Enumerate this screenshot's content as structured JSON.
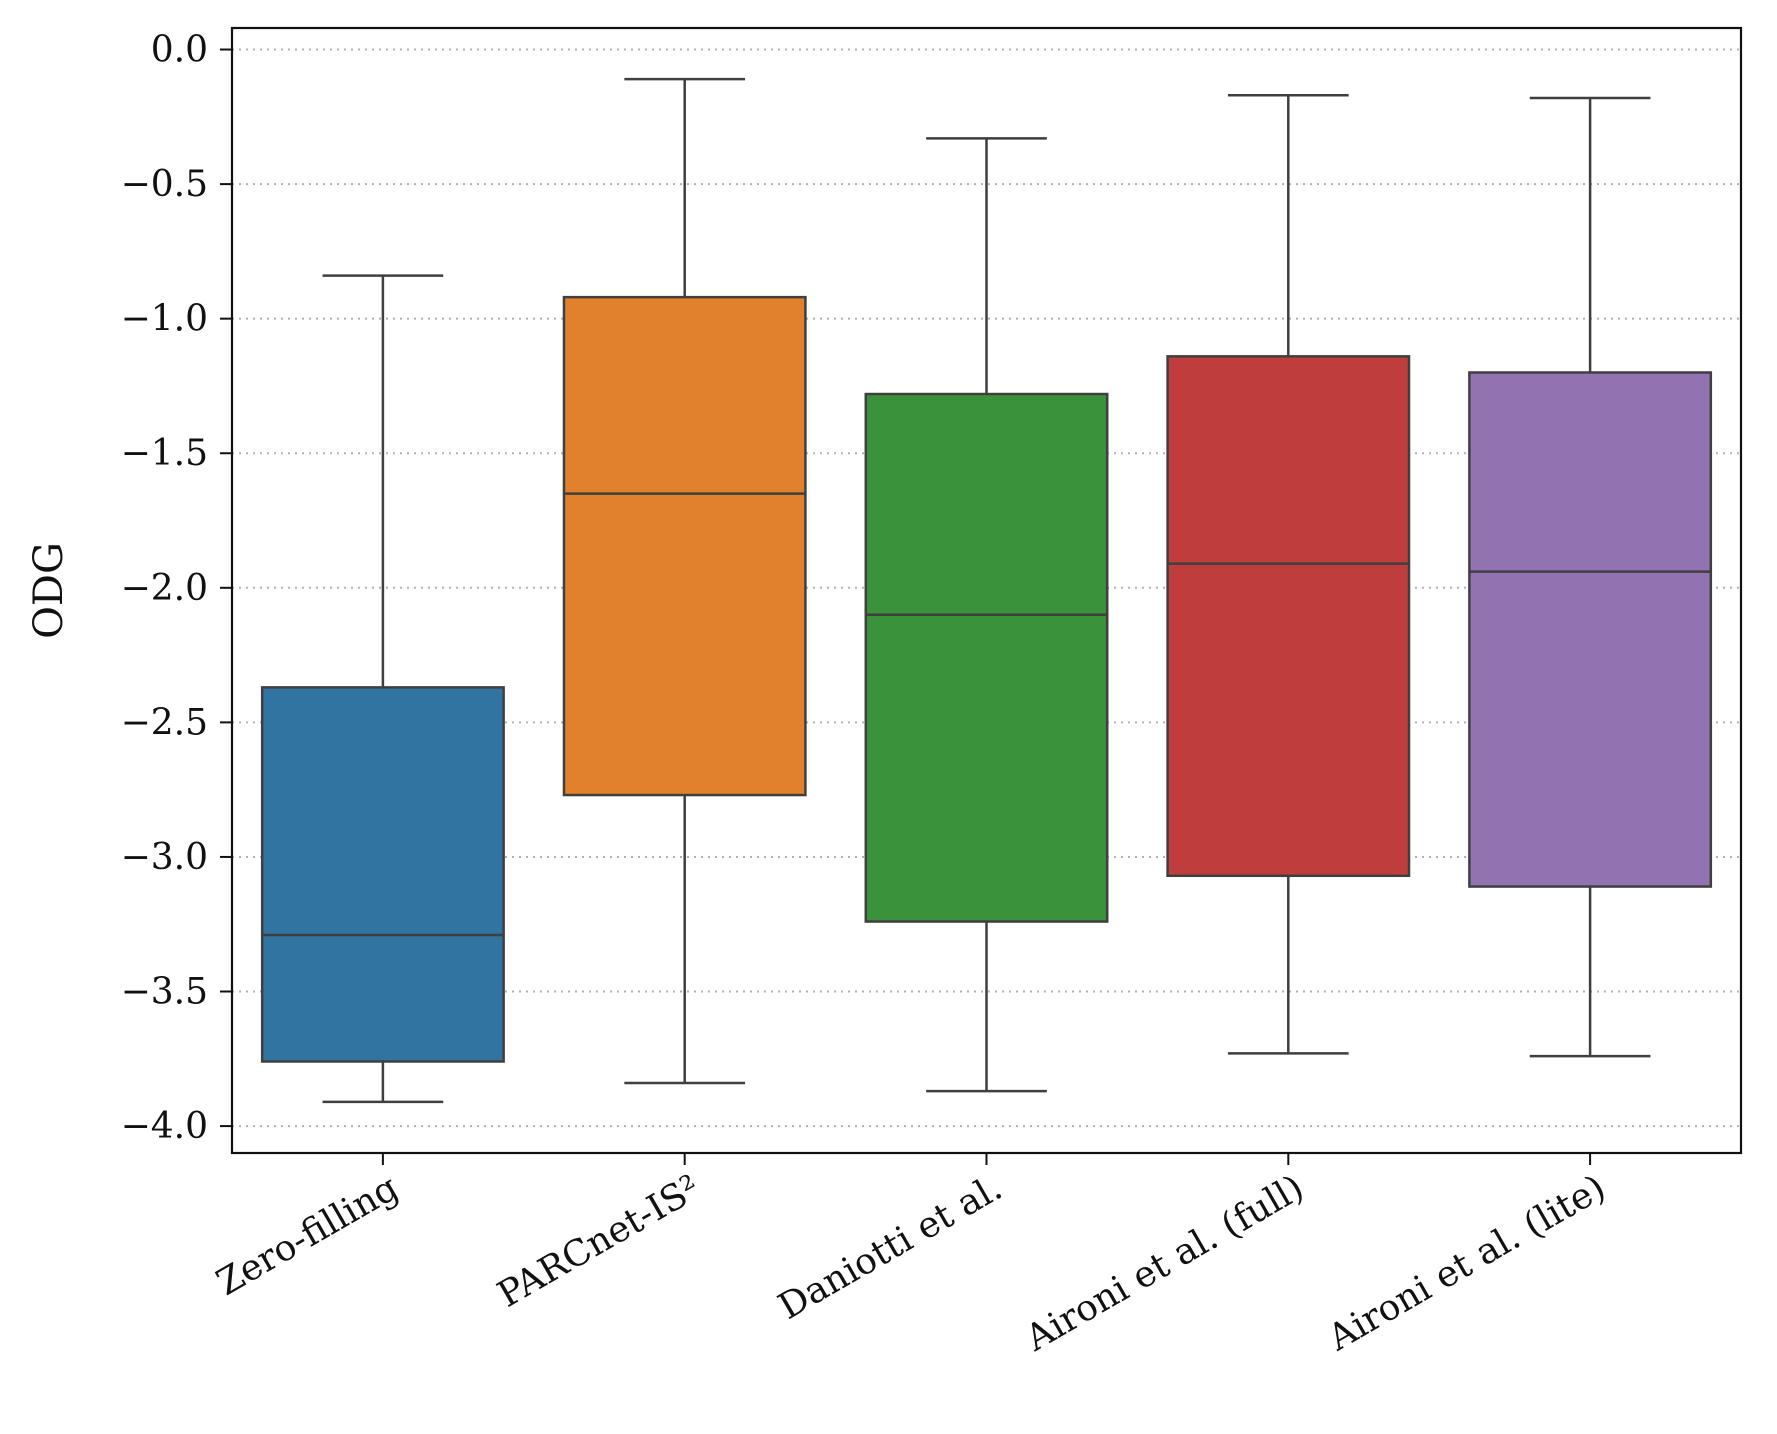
{
  "chart_data": {
    "type": "box",
    "title": "",
    "xlabel": "",
    "ylabel": "ODG",
    "ylim": [
      -4.1,
      0.08
    ],
    "y_ticks": [
      0.0,
      -0.5,
      -1.0,
      -1.5,
      -2.0,
      -2.5,
      -3.0,
      -3.5,
      -4.0
    ],
    "y_tick_labels": [
      "0.0",
      "−0.5",
      "−1.0",
      "−1.5",
      "−2.0",
      "−2.5",
      "−3.0",
      "−3.5",
      "−4.0"
    ],
    "grid": "horizontal-dotted",
    "categories": [
      "Zero-filling",
      "PARCnet-IS²",
      "Daniotti et al.",
      "Aironi et al. (full)",
      "Aironi et al. (lite)"
    ],
    "series": [
      {
        "name": "Zero-filling",
        "color": "#3274a1",
        "whisker_low": -3.91,
        "q1": -3.76,
        "median": -3.29,
        "q3": -2.37,
        "whisker_high": -0.84
      },
      {
        "name": "PARCnet-IS²",
        "color": "#e1812c",
        "whisker_low": -3.84,
        "q1": -2.77,
        "median": -1.65,
        "q3": -0.92,
        "whisker_high": -0.11
      },
      {
        "name": "Daniotti et al.",
        "color": "#3a923a",
        "whisker_low": -3.87,
        "q1": -3.24,
        "median": -2.1,
        "q3": -1.28,
        "whisker_high": -0.33
      },
      {
        "name": "Aironi et al. (full)",
        "color": "#c03d3e",
        "whisker_low": -3.73,
        "q1": -3.07,
        "median": -1.91,
        "q3": -1.14,
        "whisker_high": -0.17
      },
      {
        "name": "Aironi et al. (lite)",
        "color": "#9372b2",
        "whisker_low": -3.74,
        "q1": -3.11,
        "median": -1.94,
        "q3": -1.2,
        "whisker_high": -0.18
      }
    ]
  }
}
